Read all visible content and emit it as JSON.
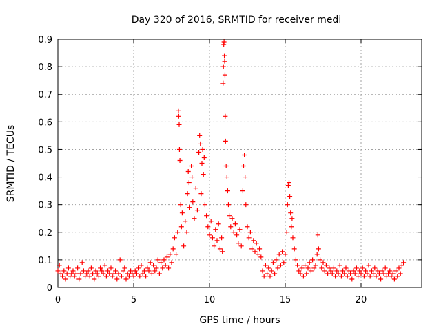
{
  "chart_data": {
    "type": "scatter",
    "title": "Day 320 of 2016, SRMTID for receiver medi",
    "xlabel": "GPS time / hours",
    "ylabel": "SRMTID / TECUs",
    "xlim": [
      0,
      24
    ],
    "ylim": [
      0,
      0.9
    ],
    "xticks": [
      0,
      5,
      10,
      15,
      20
    ],
    "xtick_labels": [
      "0",
      "5",
      "10",
      "15",
      "20"
    ],
    "yticks": [
      0,
      0.1,
      0.2,
      0.3,
      0.4,
      0.5,
      0.6,
      0.7,
      0.8,
      0.9
    ],
    "ytick_labels": [
      "0",
      "0.1",
      "0.2",
      "0.3",
      "0.4",
      "0.5",
      "0.6",
      "0.7",
      "0.8",
      "0.9"
    ],
    "grid": true,
    "marker": "+",
    "series": [
      {
        "name": "SRMTID",
        "color": "#ff0000",
        "points": [
          [
            0.0,
            0.06
          ],
          [
            0.1,
            0.08
          ],
          [
            0.2,
            0.05
          ],
          [
            0.3,
            0.04
          ],
          [
            0.4,
            0.06
          ],
          [
            0.5,
            0.03
          ],
          [
            0.6,
            0.05
          ],
          [
            0.7,
            0.07
          ],
          [
            0.8,
            0.04
          ],
          [
            0.9,
            0.05
          ],
          [
            1.0,
            0.06
          ],
          [
            1.1,
            0.04
          ],
          [
            1.2,
            0.05
          ],
          [
            1.3,
            0.07
          ],
          [
            1.4,
            0.03
          ],
          [
            1.5,
            0.05
          ],
          [
            1.6,
            0.09
          ],
          [
            1.7,
            0.06
          ],
          [
            1.8,
            0.04
          ],
          [
            1.9,
            0.05
          ],
          [
            2.0,
            0.06
          ],
          [
            2.1,
            0.04
          ],
          [
            2.2,
            0.07
          ],
          [
            2.3,
            0.05
          ],
          [
            2.4,
            0.03
          ],
          [
            2.5,
            0.06
          ],
          [
            2.6,
            0.05
          ],
          [
            2.7,
            0.04
          ],
          [
            2.8,
            0.07
          ],
          [
            2.9,
            0.06
          ],
          [
            3.0,
            0.05
          ],
          [
            3.1,
            0.08
          ],
          [
            3.2,
            0.04
          ],
          [
            3.3,
            0.06
          ],
          [
            3.4,
            0.05
          ],
          [
            3.5,
            0.07
          ],
          [
            3.6,
            0.04
          ],
          [
            3.7,
            0.05
          ],
          [
            3.8,
            0.06
          ],
          [
            3.9,
            0.03
          ],
          [
            4.0,
            0.05
          ],
          [
            4.1,
            0.1
          ],
          [
            4.2,
            0.04
          ],
          [
            4.3,
            0.06
          ],
          [
            4.4,
            0.07
          ],
          [
            4.5,
            0.03
          ],
          [
            4.6,
            0.05
          ],
          [
            4.7,
            0.04
          ],
          [
            4.8,
            0.06
          ],
          [
            4.9,
            0.05
          ],
          [
            5.0,
            0.04
          ],
          [
            5.1,
            0.06
          ],
          [
            5.2,
            0.05
          ],
          [
            5.3,
            0.07
          ],
          [
            5.4,
            0.04
          ],
          [
            5.5,
            0.08
          ],
          [
            5.6,
            0.05
          ],
          [
            5.7,
            0.06
          ],
          [
            5.8,
            0.04
          ],
          [
            5.9,
            0.07
          ],
          [
            6.0,
            0.06
          ],
          [
            6.1,
            0.09
          ],
          [
            6.2,
            0.05
          ],
          [
            6.3,
            0.08
          ],
          [
            6.4,
            0.06
          ],
          [
            6.5,
            0.07
          ],
          [
            6.6,
            0.1
          ],
          [
            6.7,
            0.05
          ],
          [
            6.8,
            0.09
          ],
          [
            6.9,
            0.07
          ],
          [
            7.0,
            0.1
          ],
          [
            7.1,
            0.08
          ],
          [
            7.2,
            0.11
          ],
          [
            7.3,
            0.07
          ],
          [
            7.4,
            0.12
          ],
          [
            7.5,
            0.09
          ],
          [
            7.6,
            0.14
          ],
          [
            7.7,
            0.18
          ],
          [
            7.8,
            0.12
          ],
          [
            7.9,
            0.2
          ],
          [
            7.95,
            0.64
          ],
          [
            7.97,
            0.62
          ],
          [
            8.0,
            0.59
          ],
          [
            8.02,
            0.5
          ],
          [
            8.05,
            0.46
          ],
          [
            8.1,
            0.3
          ],
          [
            8.15,
            0.22
          ],
          [
            8.2,
            0.27
          ],
          [
            8.3,
            0.15
          ],
          [
            8.4,
            0.24
          ],
          [
            8.5,
            0.2
          ],
          [
            8.55,
            0.34
          ],
          [
            8.6,
            0.42
          ],
          [
            8.65,
            0.38
          ],
          [
            8.7,
            0.29
          ],
          [
            8.8,
            0.44
          ],
          [
            8.85,
            0.4
          ],
          [
            8.9,
            0.31
          ],
          [
            9.0,
            0.25
          ],
          [
            9.1,
            0.36
          ],
          [
            9.2,
            0.28
          ],
          [
            9.3,
            0.49
          ],
          [
            9.35,
            0.55
          ],
          [
            9.4,
            0.52
          ],
          [
            9.45,
            0.34
          ],
          [
            9.5,
            0.45
          ],
          [
            9.55,
            0.5
          ],
          [
            9.6,
            0.41
          ],
          [
            9.65,
            0.47
          ],
          [
            9.7,
            0.3
          ],
          [
            9.8,
            0.26
          ],
          [
            9.9,
            0.22
          ],
          [
            10.0,
            0.19
          ],
          [
            10.1,
            0.24
          ],
          [
            10.2,
            0.18
          ],
          [
            10.3,
            0.15
          ],
          [
            10.4,
            0.21
          ],
          [
            10.5,
            0.17
          ],
          [
            10.6,
            0.23
          ],
          [
            10.7,
            0.14
          ],
          [
            10.8,
            0.18
          ],
          [
            10.85,
            0.13
          ],
          [
            10.9,
            0.74
          ],
          [
            10.92,
            0.8
          ],
          [
            10.94,
            0.88
          ],
          [
            10.96,
            0.89
          ],
          [
            10.98,
            0.84
          ],
          [
            11.0,
            0.82
          ],
          [
            11.02,
            0.77
          ],
          [
            11.04,
            0.62
          ],
          [
            11.06,
            0.53
          ],
          [
            11.1,
            0.44
          ],
          [
            11.15,
            0.4
          ],
          [
            11.2,
            0.35
          ],
          [
            11.25,
            0.3
          ],
          [
            11.3,
            0.26
          ],
          [
            11.4,
            0.22
          ],
          [
            11.5,
            0.25
          ],
          [
            11.6,
            0.2
          ],
          [
            11.7,
            0.23
          ],
          [
            11.8,
            0.19
          ],
          [
            11.9,
            0.16
          ],
          [
            12.0,
            0.21
          ],
          [
            12.1,
            0.15
          ],
          [
            12.2,
            0.35
          ],
          [
            12.25,
            0.44
          ],
          [
            12.3,
            0.48
          ],
          [
            12.35,
            0.4
          ],
          [
            12.4,
            0.3
          ],
          [
            12.5,
            0.22
          ],
          [
            12.6,
            0.18
          ],
          [
            12.7,
            0.2
          ],
          [
            12.8,
            0.14
          ],
          [
            12.9,
            0.17
          ],
          [
            13.0,
            0.13
          ],
          [
            13.1,
            0.16
          ],
          [
            13.2,
            0.12
          ],
          [
            13.3,
            0.14
          ],
          [
            13.4,
            0.11
          ],
          [
            13.5,
            0.06
          ],
          [
            13.6,
            0.04
          ],
          [
            13.7,
            0.08
          ],
          [
            13.8,
            0.05
          ],
          [
            13.9,
            0.07
          ],
          [
            14.0,
            0.04
          ],
          [
            14.1,
            0.06
          ],
          [
            14.2,
            0.09
          ],
          [
            14.3,
            0.05
          ],
          [
            14.4,
            0.1
          ],
          [
            14.5,
            0.07
          ],
          [
            14.6,
            0.12
          ],
          [
            14.7,
            0.08
          ],
          [
            14.8,
            0.13
          ],
          [
            14.9,
            0.09
          ],
          [
            15.0,
            0.12
          ],
          [
            15.1,
            0.2
          ],
          [
            15.15,
            0.3
          ],
          [
            15.2,
            0.37
          ],
          [
            15.25,
            0.38
          ],
          [
            15.3,
            0.33
          ],
          [
            15.35,
            0.27
          ],
          [
            15.4,
            0.22
          ],
          [
            15.45,
            0.25
          ],
          [
            15.5,
            0.18
          ],
          [
            15.6,
            0.14
          ],
          [
            15.7,
            0.1
          ],
          [
            15.8,
            0.08
          ],
          [
            15.9,
            0.06
          ],
          [
            16.0,
            0.05
          ],
          [
            16.1,
            0.07
          ],
          [
            16.2,
            0.04
          ],
          [
            16.3,
            0.08
          ],
          [
            16.4,
            0.05
          ],
          [
            16.5,
            0.07
          ],
          [
            16.6,
            0.09
          ],
          [
            16.7,
            0.06
          ],
          [
            16.8,
            0.1
          ],
          [
            16.9,
            0.07
          ],
          [
            17.0,
            0.08
          ],
          [
            17.1,
            0.12
          ],
          [
            17.15,
            0.19
          ],
          [
            17.2,
            0.14
          ],
          [
            17.3,
            0.1
          ],
          [
            17.4,
            0.07
          ],
          [
            17.5,
            0.09
          ],
          [
            17.6,
            0.06
          ],
          [
            17.7,
            0.08
          ],
          [
            17.8,
            0.05
          ],
          [
            17.9,
            0.07
          ],
          [
            18.0,
            0.06
          ],
          [
            18.1,
            0.05
          ],
          [
            18.2,
            0.07
          ],
          [
            18.3,
            0.04
          ],
          [
            18.4,
            0.06
          ],
          [
            18.5,
            0.05
          ],
          [
            18.6,
            0.08
          ],
          [
            18.7,
            0.04
          ],
          [
            18.8,
            0.06
          ],
          [
            18.9,
            0.05
          ],
          [
            19.0,
            0.07
          ],
          [
            19.1,
            0.04
          ],
          [
            19.2,
            0.06
          ],
          [
            19.3,
            0.05
          ],
          [
            19.4,
            0.03
          ],
          [
            19.5,
            0.06
          ],
          [
            19.6,
            0.05
          ],
          [
            19.7,
            0.07
          ],
          [
            19.8,
            0.04
          ],
          [
            19.9,
            0.06
          ],
          [
            20.0,
            0.05
          ],
          [
            20.1,
            0.07
          ],
          [
            20.2,
            0.04
          ],
          [
            20.3,
            0.06
          ],
          [
            20.4,
            0.05
          ],
          [
            20.5,
            0.08
          ],
          [
            20.6,
            0.04
          ],
          [
            20.7,
            0.06
          ],
          [
            20.8,
            0.05
          ],
          [
            20.9,
            0.07
          ],
          [
            21.0,
            0.04
          ],
          [
            21.1,
            0.06
          ],
          [
            21.2,
            0.05
          ],
          [
            21.3,
            0.03
          ],
          [
            21.4,
            0.06
          ],
          [
            21.5,
            0.05
          ],
          [
            21.6,
            0.07
          ],
          [
            21.7,
            0.04
          ],
          [
            21.8,
            0.05
          ],
          [
            21.9,
            0.06
          ],
          [
            22.0,
            0.04
          ],
          [
            22.1,
            0.05
          ],
          [
            22.2,
            0.03
          ],
          [
            22.3,
            0.06
          ],
          [
            22.4,
            0.04
          ],
          [
            22.5,
            0.07
          ],
          [
            22.6,
            0.05
          ],
          [
            22.7,
            0.08
          ],
          [
            22.8,
            0.09
          ]
        ]
      }
    ]
  }
}
